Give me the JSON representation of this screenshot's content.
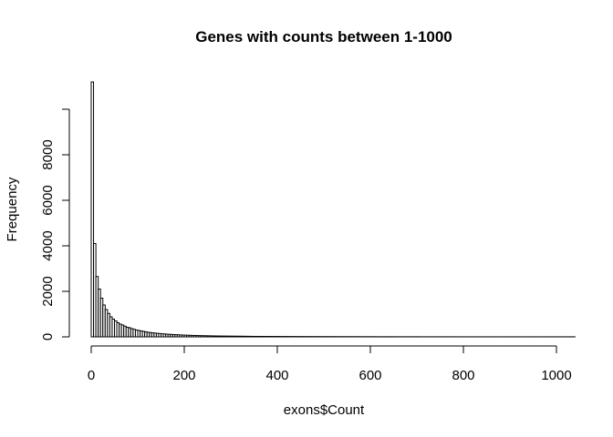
{
  "chart_data": {
    "type": "bar",
    "title": "Genes with counts between 1-1000",
    "xlabel": "exons$Count",
    "ylabel": "Frequency",
    "bin_width": 5,
    "xlim": [
      0,
      1040
    ],
    "ylim": [
      0,
      11200
    ],
    "x_ticks": [
      0,
      200,
      400,
      600,
      800,
      1000
    ],
    "y_ticks": [
      0,
      2000,
      4000,
      6000,
      8000,
      10000
    ],
    "y_tick_labels": [
      "0",
      "2000",
      "4000",
      "6000",
      "8000",
      ""
    ],
    "grid": false,
    "legend": "none",
    "bins_start": [
      0,
      5,
      10,
      15,
      20,
      25,
      30,
      35,
      40,
      45,
      50,
      55,
      60,
      65,
      70,
      75,
      80,
      85,
      90,
      95,
      100,
      105,
      110,
      115,
      120,
      125,
      130,
      135,
      140,
      145,
      150,
      155,
      160,
      165,
      170,
      175,
      180,
      185,
      190,
      195,
      200,
      205,
      210,
      215,
      220,
      225,
      230,
      235,
      240,
      245,
      250,
      255,
      260,
      265,
      270,
      275,
      280,
      285,
      290,
      295,
      300,
      305,
      310,
      315,
      320,
      325,
      330,
      335,
      340,
      345,
      350,
      355,
      360,
      365,
      370,
      375,
      380,
      385,
      390,
      395,
      400,
      405,
      410,
      415,
      420,
      425,
      430,
      435,
      440,
      445,
      450,
      455,
      460,
      465,
      470,
      475,
      480,
      485,
      490,
      495,
      500,
      505,
      510,
      515,
      520,
      525,
      530,
      535,
      540,
      545,
      550,
      555,
      560,
      565,
      570,
      575,
      580,
      585,
      590,
      595,
      600,
      605,
      610,
      615,
      620,
      625,
      630,
      635,
      640,
      645,
      650,
      655,
      660,
      665,
      670,
      675,
      680,
      685,
      690,
      695,
      700,
      705,
      710,
      715,
      720,
      725,
      730,
      735,
      740,
      745,
      750,
      755,
      760,
      765,
      770,
      775,
      780,
      785,
      790,
      795,
      800,
      805,
      810,
      815,
      820,
      825,
      830,
      835,
      840,
      845,
      850,
      855,
      860,
      865,
      870,
      875,
      880,
      885,
      890,
      895,
      900,
      905,
      910,
      915,
      920,
      925,
      930,
      935,
      940,
      945,
      950,
      955,
      960,
      965,
      970,
      975,
      980,
      985,
      990,
      995,
      1000,
      1005,
      1010,
      1015,
      1020,
      1025,
      1030,
      1035
    ],
    "values": [
      11200,
      4100,
      2650,
      2100,
      1700,
      1400,
      1200,
      1030,
      880,
      780,
      700,
      620,
      560,
      520,
      470,
      420,
      400,
      360,
      330,
      300,
      280,
      260,
      240,
      220,
      200,
      190,
      175,
      165,
      155,
      145,
      135,
      128,
      120,
      112,
      105,
      100,
      95,
      90,
      85,
      80,
      76,
      72,
      68,
      64,
      61,
      58,
      55,
      52,
      50,
      48,
      46,
      44,
      42,
      40,
      38,
      36,
      35,
      34,
      33,
      32,
      31,
      30,
      29,
      28,
      27,
      26,
      25,
      24,
      23,
      22,
      21,
      21,
      20,
      20,
      19,
      19,
      18,
      18,
      17,
      17,
      16,
      16,
      15,
      15,
      14,
      14,
      13,
      13,
      13,
      12,
      12,
      12,
      11,
      11,
      11,
      10,
      10,
      10,
      10,
      9,
      9,
      9,
      9,
      9,
      8,
      8,
      8,
      8,
      8,
      7,
      7,
      7,
      7,
      7,
      7,
      6,
      6,
      6,
      6,
      6,
      6,
      6,
      5,
      5,
      5,
      5,
      5,
      5,
      5,
      5,
      4,
      4,
      4,
      4,
      4,
      4,
      4,
      4,
      4,
      4,
      4,
      3,
      3,
      3,
      3,
      3,
      3,
      3,
      3,
      3,
      3,
      3,
      3,
      3,
      3,
      3,
      3,
      2,
      2,
      2,
      2,
      2,
      2,
      2,
      2,
      2,
      2,
      2,
      2,
      2,
      2,
      2,
      2,
      2,
      2,
      2,
      2,
      2,
      2,
      2,
      2,
      2,
      2,
      2,
      2,
      2,
      2,
      2,
      2,
      2,
      2,
      2,
      2,
      2,
      2,
      2,
      2,
      2,
      2,
      2,
      2,
      2,
      2,
      2,
      2,
      2,
      2,
      2,
      2,
      2,
      2,
      2,
      2,
      2
    ]
  }
}
